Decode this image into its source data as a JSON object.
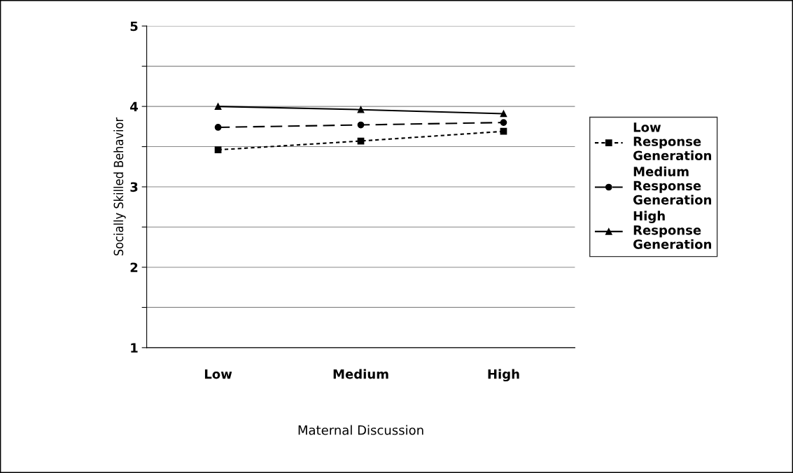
{
  "chart_data": {
    "type": "line",
    "xlabel": "Maternal Discussion",
    "ylabel": "Socially Skilled Behavior",
    "categories": [
      "Low",
      "Medium",
      "High"
    ],
    "series": [
      {
        "name": "Low Response Generation",
        "color": "#000000",
        "values": [
          3.46,
          3.57,
          3.69
        ],
        "marker": "square",
        "line_style": "dotted"
      },
      {
        "name": "Medium Response Generation",
        "color": "#000000",
        "values": [
          3.74,
          3.77,
          3.8
        ],
        "marker": "circle",
        "line_style": "dashed"
      },
      {
        "name": "High Response Generation",
        "color": "#000000",
        "values": [
          4.0,
          3.96,
          3.91
        ],
        "marker": "triangle",
        "line_style": "solid"
      }
    ],
    "ylim": [
      1,
      5
    ],
    "yticks": [
      1,
      {
        "value": 1.5,
        "label": null
      },
      2,
      {
        "value": 2.5,
        "label": null
      },
      3,
      {
        "value": 3.5,
        "label": null
      },
      4,
      {
        "value": 4.5,
        "label": null
      },
      5
    ],
    "grid": "y",
    "legend": "right"
  }
}
